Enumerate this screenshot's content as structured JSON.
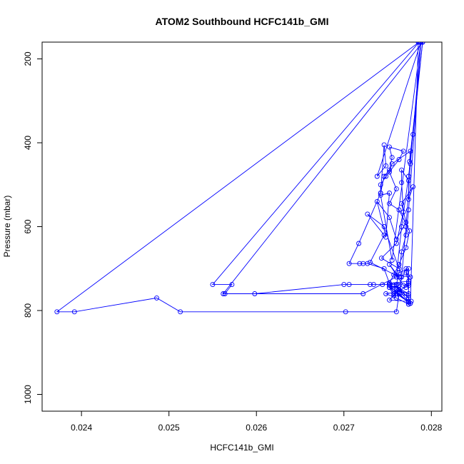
{
  "chart_data": {
    "type": "line",
    "title": "ATOM2 Southbound HCFC141b_GMI",
    "xlabel": "HCFC141b_GMI",
    "ylabel": "Pressure (mbar)",
    "xlim": [
      0.02355,
      0.02812
    ],
    "ylim": [
      1040,
      160
    ],
    "y_reversed": true,
    "x_ticks": [
      0.024,
      0.025,
      0.026,
      0.027,
      0.028
    ],
    "x_tick_labels": [
      "0.024",
      "0.025",
      "0.026",
      "0.027",
      "0.028"
    ],
    "y_ticks": [
      200,
      400,
      600,
      800,
      1000
    ],
    "y_tick_labels": [
      "200",
      "400",
      "600",
      "800",
      "1000"
    ],
    "grid": false,
    "legend": "none",
    "series_color": "#0000ff",
    "marker": "open-circle",
    "series": [
      {
        "x": [
          0.02788,
          0.02755,
          0.02742,
          0.02752,
          0.02748,
          0.02738,
          0.02752,
          0.0276,
          0.02771,
          0.02766,
          0.02779,
          0.02774,
          0.02774,
          0.02766,
          0.02766,
          0.02768,
          0.0276,
          0.02743,
          0.02763,
          0.02746,
          0.02727,
          0.02746,
          0.0273,
          0.02763,
          0.02752,
          0.02768,
          0.02774,
          0.02774,
          0.02757,
          0.02776,
          0.02771,
          0.02774,
          0.02752,
          0.0276,
          0.02774,
          0.02757,
          0.02774,
          0.0276,
          0.02763,
          0.02757,
          0.02752,
          0.02763,
          0.02771,
          0.02774,
          0.02771,
          0.02774,
          0.02774,
          0.02752,
          0.02763,
          0.02774,
          0.02774,
          0.0276,
          0.02748,
          0.02763,
          0.02752,
          0.02774,
          0.02752,
          0.02757,
          0.02774,
          0.02774,
          0.0276,
          0.02774,
          0.02763,
          0.02774,
          0.02774,
          0.02777,
          0.02776,
          0.02785
        ],
        "y": [
          160,
          680,
          525,
          520,
          625,
          540,
          578,
          630,
          590,
          545,
          505,
          535,
          490,
          465,
          495,
          565,
          640,
          675,
          700,
          600,
          570,
          620,
          685,
          720,
          690,
          740,
          735,
          700,
          715,
          720,
          710,
          730,
          735,
          750,
          760,
          740,
          770,
          740,
          750,
          765,
          745,
          740,
          700,
          735,
          745,
          735,
          778,
          775,
          750,
          780,
          785,
          770,
          760,
          755,
          745,
          780,
          740,
          760,
          740,
          765,
          760,
          780,
          760,
          780,
          785,
          778,
          783,
          160
        ]
      },
      {
        "x": [
          0.02788,
          0.02738,
          0.02748,
          0.02746,
          0.02742,
          0.02746,
          0.02752,
          0.02755,
          0.02752,
          0.02768,
          0.02763,
          0.02748,
          0.02742,
          0.02742,
          0.02717,
          0.02706,
          0.02718,
          0.02722,
          0.02727,
          0.02746,
          0.02752,
          0.02763,
          0.02771,
          0.02775,
          0.02763,
          0.02752,
          0.0276,
          0.02752,
          0.02755,
          0.02776,
          0.02775,
          0.0279
        ],
        "y": [
          160,
          480,
          455,
          405,
          520,
          480,
          465,
          435,
          410,
          420,
          440,
          480,
          500,
          520,
          640,
          688,
          688,
          688,
          688,
          700,
          735,
          690,
          650,
          610,
          560,
          545,
          510,
          470,
          450,
          420,
          445,
          160
        ]
      },
      {
        "x": [
          0.02786,
          0.0255,
          0.02572,
          0.02564,
          0.02598,
          0.027,
          0.02706,
          0.0273,
          0.02734,
          0.02744,
          0.02752,
          0.0276,
          0.02763,
          0.02766,
          0.02771,
          0.02774,
          0.02788
        ],
        "y": [
          160,
          738,
          738,
          760,
          760,
          738,
          738,
          738,
          738,
          738,
          738,
          738,
          710,
          660,
          620,
          560,
          160
        ]
      },
      {
        "x": [
          0.02786,
          0.02372,
          0.02392,
          0.02486,
          0.02513,
          0.02702,
          0.0276,
          0.02766,
          0.02771,
          0.02776,
          0.02788
        ],
        "y": [
          160,
          803,
          803,
          770,
          803,
          803,
          803,
          720,
          600,
          450,
          160
        ]
      },
      {
        "x": [
          0.0279,
          0.02562,
          0.02722,
          0.0276,
          0.02766,
          0.02774,
          0.02779,
          0.0279
        ],
        "y": [
          160,
          760,
          760,
          720,
          600,
          480,
          380,
          160
        ]
      }
    ]
  }
}
